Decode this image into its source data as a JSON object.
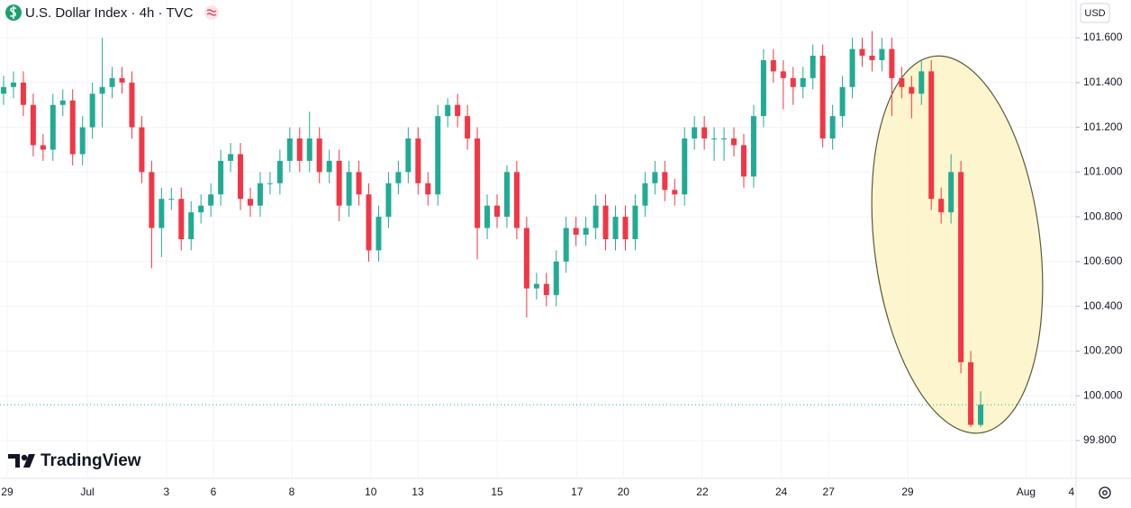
{
  "chart_data": {
    "type": "candlestick",
    "title": "U.S. Dollar Index · 4h · TVC",
    "currency": "USD",
    "watermark": "TradingView",
    "up_color": "#22ab94",
    "down_color": "#f23645",
    "grid": true,
    "ylim": [
      99.631,
      101.769
    ],
    "yticks": [
      {
        "value": 99.8,
        "label": "99.800"
      },
      {
        "value": 100.0,
        "label": "100.000"
      },
      {
        "value": 100.2,
        "label": "100.200"
      },
      {
        "value": 100.4,
        "label": "100.400"
      },
      {
        "value": 100.6,
        "label": "100.600"
      },
      {
        "value": 100.8,
        "label": "100.800"
      },
      {
        "value": 101.0,
        "label": "101.000"
      },
      {
        "value": 101.2,
        "label": "101.200"
      },
      {
        "value": 101.4,
        "label": "101.400"
      },
      {
        "value": 101.6,
        "label": "101.600"
      }
    ],
    "xlim": [
      -0.365,
      108.67
    ],
    "xticks": [
      {
        "value": 0.36,
        "label": "29"
      },
      {
        "value": 8.49,
        "label": "Jul"
      },
      {
        "value": 16.5,
        "label": "3"
      },
      {
        "value": 21.26,
        "label": "6"
      },
      {
        "value": 29.2,
        "label": "8"
      },
      {
        "value": 37.2,
        "label": "10"
      },
      {
        "value": 41.97,
        "label": "13"
      },
      {
        "value": 50.0,
        "label": "15"
      },
      {
        "value": 58.1,
        "label": "17"
      },
      {
        "value": 62.8,
        "label": "20"
      },
      {
        "value": 70.8,
        "label": "22"
      },
      {
        "value": 78.8,
        "label": "24"
      },
      {
        "value": 83.6,
        "label": "27"
      },
      {
        "value": 91.6,
        "label": "29"
      },
      {
        "value": 103.6,
        "label": "Aug"
      },
      {
        "value": 108.2,
        "label": "4"
      }
    ],
    "open": [
      101.35,
      101.38,
      101.4,
      101.3,
      101.12,
      101.1,
      101.3,
      101.32,
      101.08,
      101.2,
      101.35,
      101.38,
      101.42,
      101.4,
      101.2,
      101.0,
      100.75,
      100.88,
      100.88,
      100.7,
      100.82,
      100.85,
      100.9,
      101.05,
      101.08,
      100.88,
      100.85,
      100.95,
      100.95,
      101.05,
      101.15,
      101.05,
      101.15,
      101.0,
      101.05,
      100.85,
      101.0,
      100.9,
      100.65,
      100.8,
      100.95,
      101.0,
      101.15,
      100.95,
      100.9,
      101.25,
      101.3,
      101.25,
      101.15,
      100.75,
      100.85,
      100.8,
      101.0,
      100.75,
      100.48,
      100.5,
      100.45,
      100.6,
      100.75,
      100.72,
      100.75,
      100.85,
      100.7,
      100.8,
      100.7,
      100.85,
      100.95,
      101.0,
      100.92,
      100.9,
      101.15,
      101.2,
      101.15,
      101.15,
      101.15,
      101.12,
      100.98,
      101.25,
      101.5,
      101.45,
      101.42,
      101.38,
      101.42,
      101.52,
      101.15,
      101.25,
      101.38,
      101.55,
      101.52,
      101.5,
      101.55,
      101.42,
      101.38,
      101.35,
      101.45,
      100.88,
      100.82,
      101.0,
      100.15,
      99.87
    ],
    "high": [
      101.43,
      101.45,
      101.45,
      101.35,
      101.17,
      101.35,
      101.37,
      101.37,
      101.25,
      101.4,
      101.6,
      101.47,
      101.47,
      101.45,
      101.25,
      101.05,
      100.93,
      100.93,
      100.93,
      100.87,
      100.9,
      100.95,
      101.1,
      101.13,
      101.13,
      100.93,
      101.0,
      101.0,
      101.1,
      101.2,
      101.2,
      101.27,
      101.2,
      101.1,
      101.1,
      101.05,
      101.05,
      100.95,
      100.85,
      101.0,
      101.05,
      101.2,
      101.2,
      101.0,
      101.3,
      101.33,
      101.35,
      101.3,
      101.2,
      100.9,
      100.9,
      101.03,
      101.05,
      100.8,
      100.55,
      100.55,
      100.65,
      100.8,
      100.8,
      100.8,
      100.9,
      100.9,
      100.85,
      100.85,
      100.9,
      101.0,
      101.05,
      101.05,
      100.97,
      101.2,
      101.25,
      101.25,
      101.2,
      101.2,
      101.2,
      101.17,
      101.3,
      101.55,
      101.55,
      101.5,
      101.47,
      101.47,
      101.57,
      101.57,
      101.3,
      101.43,
      101.6,
      101.6,
      101.63,
      101.6,
      101.6,
      101.47,
      101.43,
      101.5,
      101.5,
      100.93,
      101.08,
      101.05,
      100.2,
      100.02
    ],
    "low": [
      101.3,
      101.33,
      101.25,
      101.07,
      101.05,
      101.05,
      101.25,
      101.03,
      101.03,
      101.15,
      101.2,
      101.33,
      101.35,
      101.15,
      100.95,
      100.57,
      100.62,
      100.83,
      100.65,
      100.65,
      100.77,
      100.8,
      100.85,
      101.0,
      100.83,
      100.8,
      100.8,
      100.9,
      100.9,
      101.0,
      101.0,
      101.0,
      100.95,
      100.95,
      100.78,
      100.8,
      100.85,
      100.6,
      100.6,
      100.75,
      100.9,
      100.95,
      100.9,
      100.85,
      100.85,
      101.2,
      101.2,
      101.1,
      100.61,
      100.7,
      100.75,
      100.75,
      100.7,
      100.35,
      100.43,
      100.4,
      100.4,
      100.55,
      100.67,
      100.67,
      100.7,
      100.65,
      100.65,
      100.65,
      100.65,
      100.8,
      100.9,
      100.87,
      100.85,
      100.85,
      101.1,
      101.1,
      101.05,
      101.05,
      101.07,
      100.93,
      100.93,
      101.2,
      101.4,
      101.28,
      101.3,
      101.33,
      101.37,
      101.11,
      101.1,
      101.2,
      101.33,
      101.47,
      101.45,
      101.45,
      101.25,
      101.33,
      101.24,
      101.3,
      100.83,
      100.77,
      100.77,
      100.1,
      99.86,
      99.86
    ],
    "close": [
      101.38,
      101.4,
      101.3,
      101.12,
      101.1,
      101.3,
      101.32,
      101.08,
      101.2,
      101.35,
      101.38,
      101.42,
      101.4,
      101.2,
      101.0,
      100.75,
      100.88,
      100.88,
      100.7,
      100.82,
      100.85,
      100.9,
      101.05,
      101.08,
      100.88,
      100.85,
      100.95,
      100.95,
      101.05,
      101.15,
      101.05,
      101.15,
      101.0,
      101.05,
      100.85,
      101.0,
      100.9,
      100.65,
      100.8,
      100.95,
      101.0,
      101.15,
      100.95,
      100.9,
      101.25,
      101.3,
      101.25,
      101.15,
      100.75,
      100.85,
      100.8,
      101.0,
      100.75,
      100.48,
      100.5,
      100.45,
      100.6,
      100.75,
      100.72,
      100.75,
      100.85,
      100.7,
      100.8,
      100.7,
      100.85,
      100.95,
      101.0,
      100.92,
      100.9,
      101.15,
      101.2,
      101.15,
      101.15,
      101.15,
      101.12,
      100.98,
      101.25,
      101.5,
      101.45,
      101.42,
      101.38,
      101.42,
      101.52,
      101.15,
      101.25,
      101.38,
      101.55,
      101.52,
      101.5,
      101.55,
      101.42,
      101.38,
      101.35,
      101.45,
      100.88,
      100.82,
      101.0,
      100.15,
      99.87,
      99.96
    ]
  }
}
